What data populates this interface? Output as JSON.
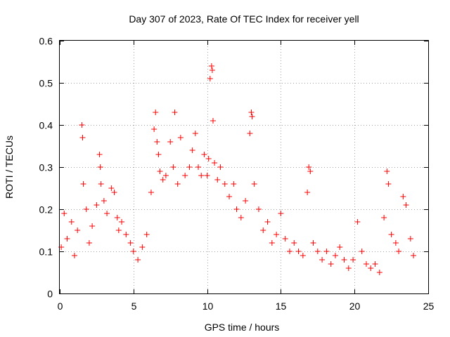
{
  "chart_data": {
    "type": "scatter",
    "title": "Day 307 of 2023, Rate Of TEC Index for receiver yell",
    "xlabel": "GPS time / hours",
    "ylabel": "ROTI / TECUs",
    "xlim": [
      0,
      25
    ],
    "ylim": [
      0,
      0.6
    ],
    "x_ticks": [
      0,
      5,
      10,
      15,
      20,
      25
    ],
    "y_ticks": [
      0,
      0.1,
      0.2,
      0.3,
      0.4,
      0.5,
      0.6
    ],
    "grid": true,
    "marker": "+",
    "color": "#ff0000",
    "series": [
      {
        "x": [
          0.1,
          0.3,
          0.5,
          0.8,
          1.0,
          1.2,
          1.5,
          1.55,
          1.6,
          1.8,
          2.0,
          2.2,
          2.5,
          2.7,
          2.75,
          2.8,
          3.0,
          3.2,
          3.5,
          3.7,
          3.9,
          4.0,
          4.2,
          4.5,
          4.8,
          5.0,
          5.3,
          5.6,
          5.9,
          6.2,
          6.4,
          6.5,
          6.6,
          6.7,
          6.8,
          7.0,
          7.2,
          7.5,
          7.7,
          7.8,
          8.0,
          8.2,
          8.5,
          8.8,
          9.0,
          9.2,
          9.4,
          9.6,
          9.8,
          10.0,
          10.1,
          10.2,
          10.3,
          10.35,
          10.4,
          10.5,
          10.7,
          10.9,
          11.2,
          11.5,
          11.8,
          12.0,
          12.3,
          12.6,
          12.9,
          13.0,
          13.05,
          13.2,
          13.5,
          13.8,
          14.1,
          14.4,
          14.7,
          15.0,
          15.3,
          15.6,
          15.9,
          16.2,
          16.5,
          16.8,
          16.9,
          17.0,
          17.2,
          17.5,
          17.8,
          18.1,
          18.4,
          18.7,
          19.0,
          19.3,
          19.6,
          19.9,
          20.2,
          20.5,
          20.8,
          21.1,
          21.4,
          21.7,
          22.0,
          22.2,
          22.3,
          22.5,
          22.8,
          23.0,
          23.3,
          23.5,
          23.8,
          24.0
        ],
        "y": [
          0.11,
          0.19,
          0.13,
          0.17,
          0.09,
          0.15,
          0.4,
          0.37,
          0.26,
          0.2,
          0.12,
          0.16,
          0.21,
          0.33,
          0.3,
          0.26,
          0.22,
          0.19,
          0.25,
          0.24,
          0.18,
          0.15,
          0.17,
          0.14,
          0.12,
          0.1,
          0.08,
          0.11,
          0.14,
          0.24,
          0.39,
          0.43,
          0.36,
          0.33,
          0.29,
          0.27,
          0.28,
          0.36,
          0.3,
          0.43,
          0.26,
          0.37,
          0.28,
          0.3,
          0.34,
          0.38,
          0.3,
          0.28,
          0.33,
          0.28,
          0.32,
          0.51,
          0.54,
          0.53,
          0.41,
          0.31,
          0.27,
          0.3,
          0.26,
          0.23,
          0.26,
          0.2,
          0.18,
          0.22,
          0.38,
          0.43,
          0.42,
          0.26,
          0.2,
          0.15,
          0.17,
          0.12,
          0.14,
          0.19,
          0.13,
          0.1,
          0.12,
          0.1,
          0.09,
          0.24,
          0.3,
          0.29,
          0.12,
          0.1,
          0.08,
          0.1,
          0.07,
          0.09,
          0.11,
          0.08,
          0.06,
          0.08,
          0.17,
          0.1,
          0.07,
          0.06,
          0.07,
          0.05,
          0.18,
          0.29,
          0.26,
          0.14,
          0.12,
          0.1,
          0.23,
          0.21,
          0.13,
          0.09
        ]
      }
    ]
  }
}
